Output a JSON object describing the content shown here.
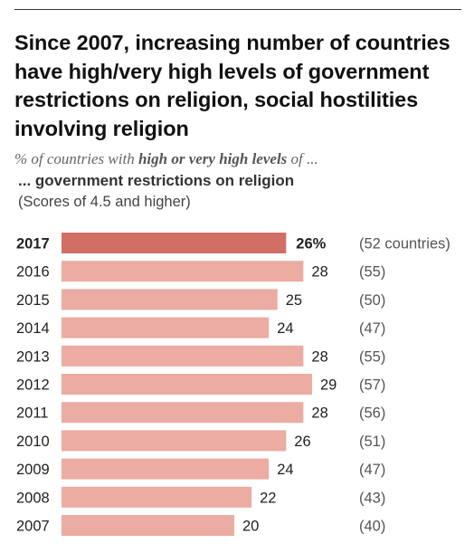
{
  "title": "Since 2007, increasing number of countries have high/very high levels of government restrictions on religion, social hostilities involving religion",
  "subtitle": {
    "prefix": "% of countries with ",
    "emphasis": "high or very high levels",
    "suffix": " of ..."
  },
  "subhead": "... government restrictions on religion",
  "note": "(Scores of 4.5 and higher)",
  "colors": {
    "highlight": "#d26f64",
    "bar": "#eaaca3"
  },
  "chart_data": {
    "type": "bar",
    "orientation": "horizontal",
    "categories": [
      "2017",
      "2016",
      "2015",
      "2014",
      "2013",
      "2012",
      "2011",
      "2010",
      "2009",
      "2008",
      "2007"
    ],
    "values": [
      26,
      28,
      25,
      24,
      28,
      29,
      28,
      26,
      24,
      22,
      20
    ],
    "value_labels": [
      "26%",
      "28",
      "25",
      "24",
      "28",
      "29",
      "28",
      "26",
      "24",
      "22",
      "20"
    ],
    "counts": [
      "(52 countries)",
      "(55)",
      "(50)",
      "(47)",
      "(55)",
      "(57)",
      "(56)",
      "(51)",
      "(47)",
      "(43)",
      "(40)"
    ],
    "highlight_category": "2017"
  }
}
